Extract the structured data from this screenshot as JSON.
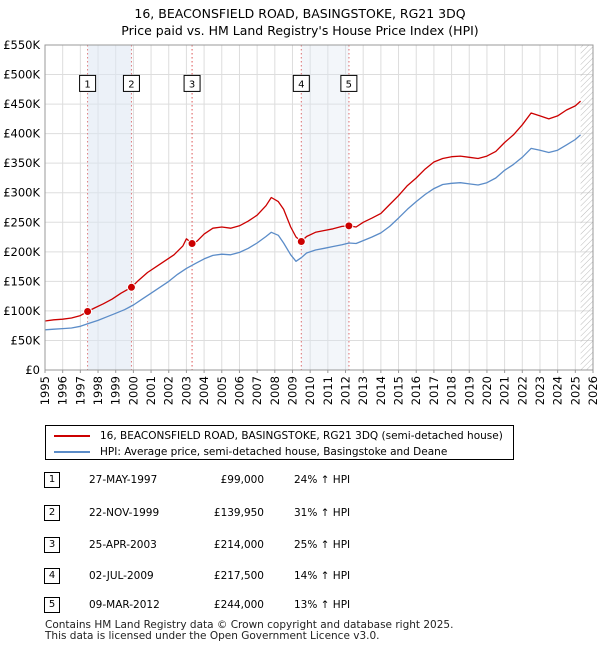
{
  "header": {
    "title_line1": "16, BEACONSFIELD ROAD, BASINGSTOKE, RG21 3DQ",
    "title_line2": "Price paid vs. HM Land Registry's House Price Index (HPI)"
  },
  "chart_data": {
    "type": "line",
    "title": "16, BEACONSFIELD ROAD, BASINGSTOKE, RG21 3DQ",
    "subtitle": "Price paid vs. HM Land Registry's House Price Index (HPI)",
    "xlabel": "",
    "ylabel": "",
    "xlim": [
      1995,
      2026
    ],
    "ylim": [
      0,
      550000
    ],
    "y_ticks": [
      0,
      50000,
      100000,
      150000,
      200000,
      250000,
      300000,
      350000,
      400000,
      450000,
      500000,
      550000
    ],
    "y_tick_labels": [
      "£0",
      "£50K",
      "£100K",
      "£150K",
      "£200K",
      "£250K",
      "£300K",
      "£350K",
      "£400K",
      "£450K",
      "£500K",
      "£550K"
    ],
    "x_ticks": [
      1995,
      1996,
      1997,
      1998,
      1999,
      2000,
      2001,
      2002,
      2003,
      2004,
      2005,
      2006,
      2007,
      2008,
      2009,
      2010,
      2011,
      2012,
      2013,
      2014,
      2015,
      2016,
      2017,
      2018,
      2019,
      2020,
      2021,
      2022,
      2023,
      2024,
      2025,
      2026
    ],
    "x_tick_labels": [
      "1995",
      "1996",
      "1997",
      "1998",
      "1999",
      "2000",
      "2001",
      "2002",
      "2003",
      "2004",
      "2005",
      "2006",
      "2007",
      "2008",
      "2009",
      "2010",
      "2011",
      "2012",
      "2013",
      "2014",
      "2015",
      "2016",
      "2017",
      "2018",
      "2019",
      "2020",
      "2021",
      "2022",
      "2023",
      "2024",
      "2025",
      "2026"
    ],
    "grid": true,
    "legend_position": "below",
    "hatched_after": 2025.3,
    "series": [
      {
        "name": "16, BEACONSFIELD ROAD, BASINGSTOKE, RG21 3DQ (semi-detached house)",
        "color": "#cc0000",
        "x": [
          1995.0,
          1995.5,
          1996.0,
          1996.5,
          1997.0,
          1997.41,
          1997.8,
          1998.3,
          1998.8,
          1999.3,
          1999.89,
          2000.3,
          2000.8,
          2001.3,
          2001.8,
          2002.3,
          2002.8,
          2003.0,
          2003.32,
          2003.6,
          2004.0,
          2004.5,
          2005.0,
          2005.5,
          2006.0,
          2006.5,
          2007.0,
          2007.5,
          2007.8,
          2008.2,
          2008.5,
          2008.9,
          2009.2,
          2009.5,
          2009.8,
          2010.3,
          2010.8,
          2011.3,
          2011.8,
          2012.19,
          2012.6,
          2013.0,
          2013.5,
          2014.0,
          2014.5,
          2015.0,
          2015.5,
          2016.0,
          2016.5,
          2017.0,
          2017.5,
          2018.0,
          2018.5,
          2019.0,
          2019.5,
          2020.0,
          2020.5,
          2021.0,
          2021.5,
          2022.0,
          2022.5,
          2023.0,
          2023.5,
          2024.0,
          2024.5,
          2025.0,
          2025.3
        ],
        "y": [
          83000,
          85000,
          86000,
          88000,
          92000,
          99000,
          105000,
          112000,
          120000,
          130000,
          139950,
          152000,
          165000,
          175000,
          185000,
          195000,
          210000,
          222000,
          214000,
          218000,
          230000,
          240000,
          242000,
          240000,
          244000,
          252000,
          262000,
          278000,
          292000,
          285000,
          272000,
          242000,
          225000,
          217500,
          226000,
          233000,
          236000,
          239000,
          243000,
          244000,
          242000,
          250000,
          257000,
          265000,
          280000,
          295000,
          312000,
          325000,
          340000,
          352000,
          358000,
          361000,
          362000,
          360000,
          358000,
          362000,
          370000,
          385000,
          398000,
          415000,
          435000,
          430000,
          425000,
          430000,
          440000,
          447000,
          455000
        ]
      },
      {
        "name": "HPI: Average price, semi-detached house, Basingstoke and Deane",
        "color": "#5b8cc8",
        "x": [
          1995.0,
          1995.5,
          1996.0,
          1996.5,
          1997.0,
          1997.5,
          1998.0,
          1998.5,
          1999.0,
          1999.5,
          2000.0,
          2000.5,
          2001.0,
          2001.5,
          2002.0,
          2002.5,
          2003.0,
          2003.5,
          2004.0,
          2004.5,
          2005.0,
          2005.5,
          2006.0,
          2006.5,
          2007.0,
          2007.5,
          2007.8,
          2008.2,
          2008.5,
          2008.9,
          2009.2,
          2009.5,
          2009.8,
          2010.3,
          2010.8,
          2011.3,
          2011.8,
          2012.2,
          2012.6,
          2013.0,
          2013.5,
          2014.0,
          2014.5,
          2015.0,
          2015.5,
          2016.0,
          2016.5,
          2017.0,
          2017.5,
          2018.0,
          2018.5,
          2019.0,
          2019.5,
          2020.0,
          2020.5,
          2021.0,
          2021.5,
          2022.0,
          2022.5,
          2023.0,
          2023.5,
          2024.0,
          2024.5,
          2025.0,
          2025.3
        ],
        "y": [
          68000,
          69000,
          70000,
          71000,
          74000,
          79000,
          84000,
          90000,
          96000,
          102000,
          110000,
          120000,
          130000,
          140000,
          150000,
          162000,
          172000,
          180000,
          188000,
          194000,
          196000,
          195000,
          199000,
          206000,
          215000,
          226000,
          233000,
          228000,
          215000,
          195000,
          184000,
          190000,
          198000,
          203000,
          206000,
          209000,
          212000,
          215000,
          214000,
          219000,
          225000,
          232000,
          243000,
          257000,
          272000,
          285000,
          297000,
          307000,
          314000,
          316000,
          317000,
          315000,
          313000,
          317000,
          325000,
          338000,
          348000,
          360000,
          375000,
          372000,
          368000,
          372000,
          381000,
          390000,
          398000
        ]
      }
    ],
    "sales": [
      {
        "num": "1",
        "x": 1997.41,
        "y": 99000
      },
      {
        "num": "2",
        "x": 1999.89,
        "y": 139950
      },
      {
        "num": "3",
        "x": 2003.32,
        "y": 214000
      },
      {
        "num": "4",
        "x": 2009.5,
        "y": 217500
      },
      {
        "num": "5",
        "x": 2012.19,
        "y": 244000
      }
    ],
    "marker_box_value": 485000
  },
  "legend": {
    "line1": "16, BEACONSFIELD ROAD, BASINGSTOKE, RG21 3DQ (semi-detached house)",
    "line2": "HPI: Average price, semi-detached house, Basingstoke and Deane"
  },
  "sales_table": [
    {
      "num": "1",
      "date": "27-MAY-1997",
      "price": "£99,000",
      "hpi": "24% ↑ HPI"
    },
    {
      "num": "2",
      "date": "22-NOV-1999",
      "price": "£139,950",
      "hpi": "31% ↑ HPI"
    },
    {
      "num": "3",
      "date": "25-APR-2003",
      "price": "£214,000",
      "hpi": "25% ↑ HPI"
    },
    {
      "num": "4",
      "date": "02-JUL-2009",
      "price": "£217,500",
      "hpi": "14% ↑ HPI"
    },
    {
      "num": "5",
      "date": "09-MAR-2012",
      "price": "£244,000",
      "hpi": "13% ↑ HPI"
    }
  ],
  "footer": {
    "line1": "Contains HM Land Registry data © Crown copyright and database right 2025.",
    "line2": "This data is licensed under the Open Government Licence v3.0."
  }
}
